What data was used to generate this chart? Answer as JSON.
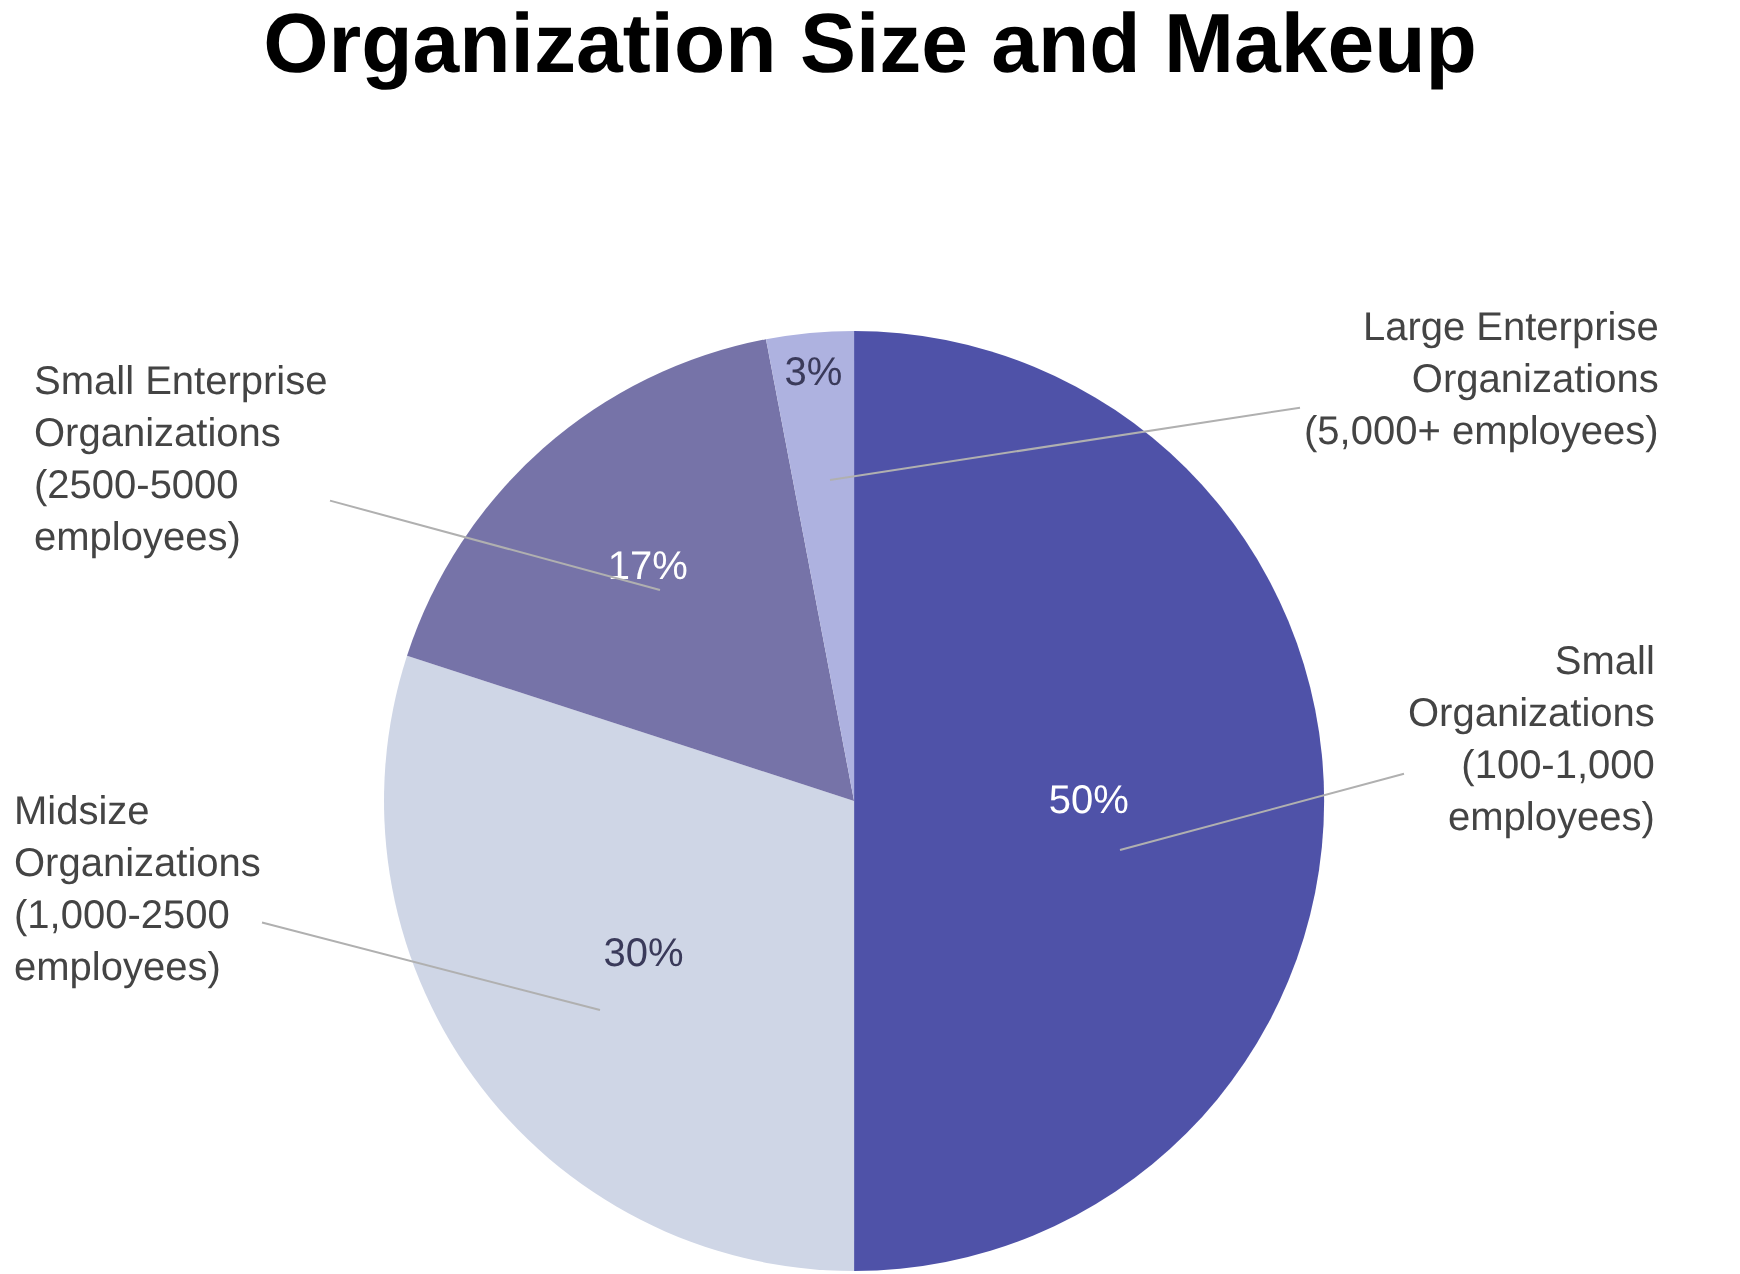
{
  "chart_data": {
    "type": "pie",
    "title": "Organization Size and Makeup",
    "categories": [
      "Small\nOrganizations\n(100-1,000\nemployees)",
      "Midsize\nOrganizations\n(1,000-2500\nemployees)",
      "Small Enterprise\nOrganizations\n(2500-5000\nemployees)",
      "Large Enterprise\nOrganizations\n(5,000+ employees)"
    ],
    "values": [
      50,
      30,
      17,
      3
    ],
    "colors": [
      "#4f52a8",
      "#cfd6e6",
      "#7673a8",
      "#aeb2e0"
    ],
    "value_labels": [
      "50%",
      "30%",
      "17%",
      "3%"
    ]
  }
}
